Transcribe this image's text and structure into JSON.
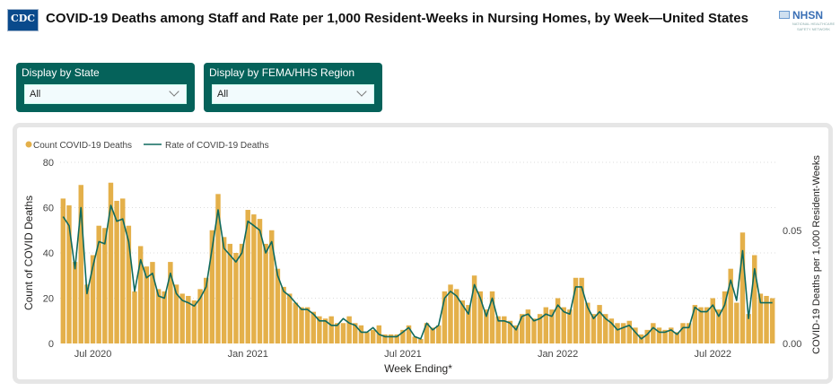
{
  "header": {
    "title": "COVID-19 Deaths among Staff and Rate per 1,000 Resident-Weeks in Nursing Homes, by Week—United States",
    "cdc_logo": "CDC",
    "nhsn_logo": "NHSN",
    "nhsn_sub": "NATIONAL HEALTHCARE SAFETY NETWORK"
  },
  "filters": [
    {
      "label": "Display by State",
      "value": "All"
    },
    {
      "label": "Display by FEMA/HHS Region",
      "value": "All"
    }
  ],
  "colors": {
    "bars": "#e4b04a",
    "line": "#0f6a5e",
    "filter_bg": "#05625a"
  },
  "chart_data": {
    "type": "bar+line",
    "xlabel": "Week Ending*",
    "ylabel": "Count of COVID Deaths",
    "y2label": "COVID-19 Deaths per 1,000 Resident-Weeks",
    "ylim": [
      0,
      80
    ],
    "y2lim": [
      0,
      0.08
    ],
    "yticks": [
      "0",
      "20",
      "40",
      "60",
      "80"
    ],
    "y2ticks": [
      {
        "label": "0.00",
        "value": 0
      },
      {
        "label": "0.05",
        "value": 0.05
      }
    ],
    "xticks": [
      {
        "label": "Jul 2020",
        "index": 5
      },
      {
        "label": "Jan 2021",
        "index": 31
      },
      {
        "label": "Jul 2021",
        "index": 57
      },
      {
        "label": "Jan 2022",
        "index": 83
      },
      {
        "label": "Jul 2022",
        "index": 109
      }
    ],
    "grid": true,
    "legend": "top-left",
    "series": [
      {
        "name": "Count COVID-19 Deaths",
        "type": "bar",
        "axis": "left",
        "values": [
          64,
          61,
          36,
          70,
          26,
          39,
          52,
          51,
          71,
          63,
          64,
          52,
          23,
          43,
          34,
          36,
          24,
          23,
          36,
          26,
          22,
          21,
          19,
          24,
          29,
          50,
          66,
          47,
          44,
          40,
          44,
          59,
          57,
          55,
          44,
          50,
          33,
          25,
          22,
          18,
          16,
          16,
          14,
          12,
          11,
          12,
          9,
          9,
          12,
          9,
          8,
          5,
          6,
          8,
          4,
          4,
          4,
          6,
          8,
          3,
          2,
          9,
          7,
          8,
          23,
          26,
          24,
          19,
          17,
          30,
          23,
          15,
          23,
          12,
          12,
          10,
          8,
          13,
          15,
          11,
          13,
          16,
          15,
          20,
          16,
          15,
          29,
          29,
          18,
          13,
          17,
          13,
          11,
          9,
          9,
          10,
          7,
          4,
          6,
          9,
          7,
          6,
          7,
          5,
          9,
          9,
          17,
          16,
          16,
          20,
          15,
          23,
          33,
          18,
          49,
          13,
          39,
          22,
          21,
          20
        ]
      },
      {
        "name": "Rate of COVID-19 Deaths",
        "type": "line",
        "axis": "right",
        "values": [
          0.056,
          0.052,
          0.033,
          0.06,
          0.022,
          0.034,
          0.045,
          0.044,
          0.061,
          0.054,
          0.055,
          0.045,
          0.023,
          0.037,
          0.029,
          0.031,
          0.021,
          0.02,
          0.031,
          0.022,
          0.019,
          0.018,
          0.0165,
          0.02,
          0.025,
          0.042,
          0.059,
          0.042,
          0.039,
          0.036,
          0.04,
          0.054,
          0.052,
          0.05,
          0.04,
          0.045,
          0.03,
          0.023,
          0.021,
          0.018,
          0.015,
          0.015,
          0.013,
          0.01,
          0.01,
          0.008,
          0.008,
          0.011,
          0.009,
          0.008,
          0.005,
          0.005,
          0.007,
          0.004,
          0.003,
          0.003,
          0.003,
          0.005,
          0.007,
          0.003,
          0.002,
          0.009,
          0.006,
          0.008,
          0.02,
          0.023,
          0.021,
          0.017,
          0.013,
          0.026,
          0.02,
          0.012,
          0.02,
          0.01,
          0.01,
          0.009,
          0.006,
          0.012,
          0.013,
          0.01,
          0.011,
          0.013,
          0.012,
          0.017,
          0.014,
          0.013,
          0.025,
          0.025,
          0.016,
          0.011,
          0.014,
          0.011,
          0.009,
          0.006,
          0.007,
          0.008,
          0.005,
          0.002,
          0.004,
          0.007,
          0.005,
          0.005,
          0.006,
          0.004,
          0.007,
          0.007,
          0.016,
          0.014,
          0.014,
          0.017,
          0.012,
          0.017,
          0.028,
          0.019,
          0.041,
          0.011,
          0.033,
          0.018,
          0.018,
          0.018
        ]
      }
    ]
  }
}
